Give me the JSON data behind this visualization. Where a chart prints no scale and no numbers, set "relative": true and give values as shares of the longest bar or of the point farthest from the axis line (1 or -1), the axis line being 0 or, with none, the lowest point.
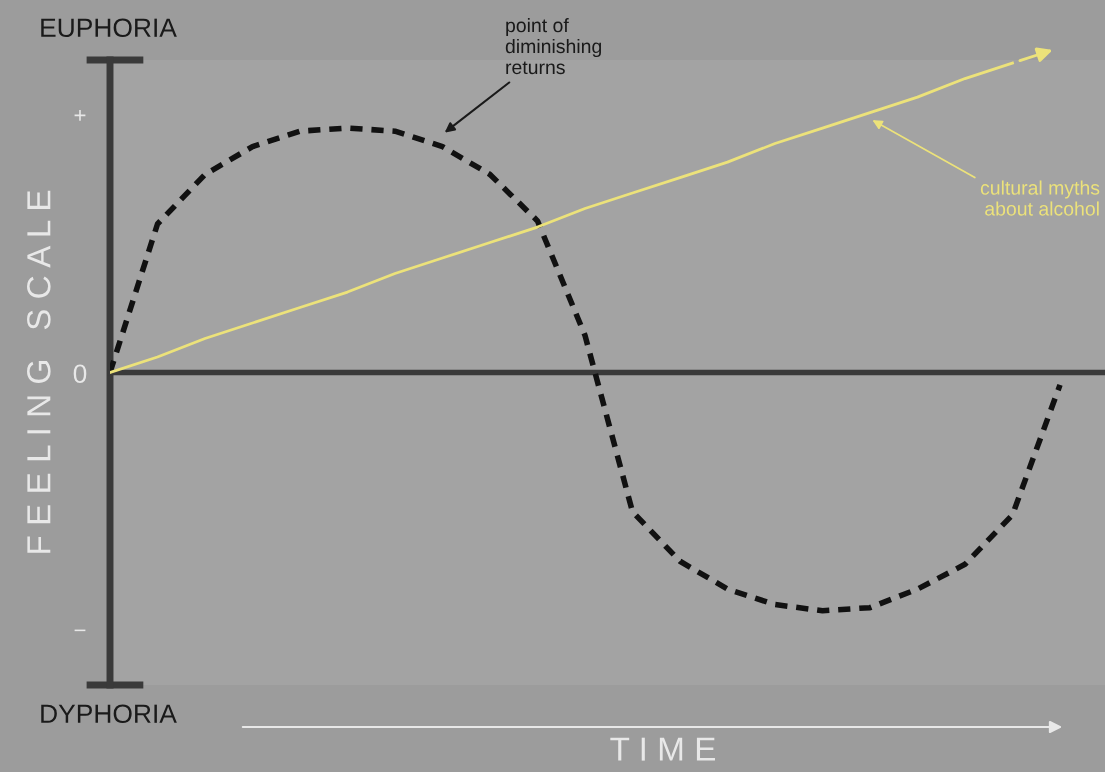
{
  "chart_data": {
    "type": "line",
    "relative": true,
    "xlabel": "T I M E",
    "ylabel": "F E E L I N G   S C A L E",
    "categories": [
      null,
      null,
      null,
      null,
      null,
      null,
      null,
      null,
      null,
      null,
      null,
      null,
      null,
      null,
      null,
      null,
      null,
      null,
      null,
      null,
      null
    ],
    "series": [
      {
        "color": "#111111",
        "line_style": "dashed",
        "values": [
          0,
          0.48,
          0.64,
          0.73,
          0.78,
          0.79,
          0.78,
          0.73,
          0.64,
          0.49,
          0.12,
          -0.45,
          -0.61,
          -0.7,
          -0.75,
          -0.77,
          -0.76,
          -0.7,
          -0.62,
          -0.46,
          -0.04
        ]
      },
      {
        "color": "#ece27a",
        "line_style": "solid",
        "values": [
          0,
          0.05,
          0.11,
          0.16,
          0.21,
          0.26,
          0.32,
          0.37,
          0.42,
          0.47,
          0.53,
          0.58,
          0.63,
          0.68,
          0.74,
          0.79,
          0.84,
          0.89,
          0.95,
          1,
          null
        ]
      }
    ],
    "annotations": [
      "EUPHORIA",
      "DYPHORIA",
      "+",
      "0",
      "−",
      "point of\ndiminishing\nreturns",
      "cultural myths\nabout alcohol"
    ],
    "legend": false,
    "marker": "none"
  }
}
